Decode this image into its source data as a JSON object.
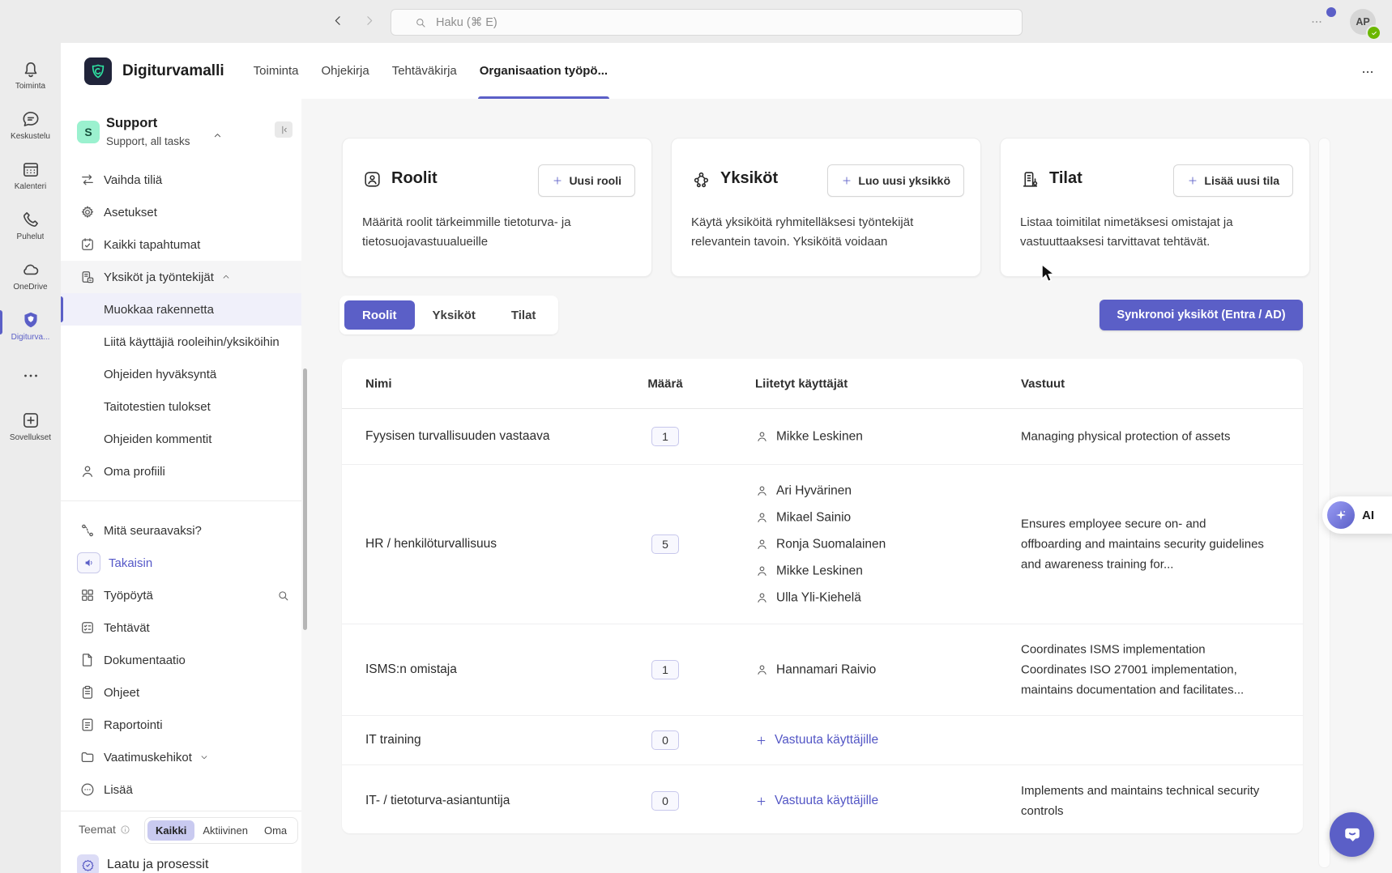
{
  "topbar": {
    "search_placeholder": "Haku (⌘ E)",
    "avatar_initials": "AP"
  },
  "rail": {
    "items": [
      {
        "label": "Toiminta",
        "icon": "bell",
        "active": false
      },
      {
        "label": "Keskustelu",
        "icon": "chat",
        "active": false
      },
      {
        "label": "Kalenteri",
        "icon": "calendar",
        "active": false
      },
      {
        "label": "Puhelut",
        "icon": "phone",
        "active": false
      },
      {
        "label": "OneDrive",
        "icon": "cloud",
        "active": false
      },
      {
        "label": "Digiturva...",
        "icon": "shield",
        "active": true
      },
      {
        "label": "",
        "icon": "dots",
        "active": false
      },
      {
        "label": "Sovellukset",
        "icon": "plus-square",
        "active": false
      }
    ]
  },
  "app_header": {
    "app_name": "Digiturvamalli",
    "tabs": [
      {
        "label": "Toiminta",
        "active": false
      },
      {
        "label": "Ohjekirja",
        "active": false
      },
      {
        "label": "Tehtäväkirja",
        "active": false
      },
      {
        "label": "Organisaation työpö...",
        "active": true
      }
    ]
  },
  "sidebar": {
    "team_initial": "S",
    "team_name": "Support",
    "team_subtitle": "Support, all tasks",
    "items": [
      {
        "label": "Vaihda tiliä",
        "icon": "swap"
      },
      {
        "label": "Asetukset",
        "icon": "gear"
      },
      {
        "label": "Kaikki tapahtumat",
        "icon": "event"
      },
      {
        "label": "Yksiköt ja työntekijät",
        "icon": "org",
        "chevron": "up",
        "grouped": true
      },
      {
        "label": "Muokkaa rakennetta",
        "sub": true,
        "active": true
      },
      {
        "label": "Liitä käyttäjiä rooleihin/yksiköihin",
        "sub": true
      },
      {
        "label": "Ohjeiden hyväksyntä",
        "sub": true
      },
      {
        "label": "Taitotestien tulokset",
        "sub": true
      },
      {
        "label": "Ohjeiden kommentit",
        "sub": true
      },
      {
        "label": "Oma profiili",
        "icon": "person"
      },
      {
        "divider": true
      },
      {
        "label": "Mitä seuraavaksi?",
        "icon": "route"
      },
      {
        "label": "Takaisin",
        "icon": "speaker",
        "accent": true,
        "boxed_icon": true
      },
      {
        "label": "Työpöytä",
        "icon": "grid",
        "trailing_icon": "search"
      },
      {
        "label": "Tehtävät",
        "icon": "tasks"
      },
      {
        "label": "Dokumentaatio",
        "icon": "doc"
      },
      {
        "label": "Ohjeet",
        "icon": "clipboard"
      },
      {
        "label": "Raportointi",
        "icon": "report"
      },
      {
        "label": "Vaatimuskehikot",
        "icon": "folder",
        "chevron": "down"
      },
      {
        "label": "Lisää",
        "icon": "more-circle"
      }
    ],
    "themes_label": "Teemat",
    "theme_filters": [
      {
        "label": "Kaikki",
        "active": true
      },
      {
        "label": "Aktiivinen",
        "active": false
      },
      {
        "label": "Oma",
        "active": false
      }
    ],
    "theme_item": "Laatu ja prosessit"
  },
  "cards": [
    {
      "title": "Roolit",
      "icon": "roles-card",
      "button": "Uusi rooli",
      "desc": "Määritä roolit tärkeimmille tietoturva- ja tietosuojavastuualueille"
    },
    {
      "title": "Yksiköt",
      "icon": "units-card",
      "button": "Luo uusi yksikkö",
      "desc": "Käytä yksiköitä ryhmitelläksesi työntekijät relevantein tavoin. Yksiköitä voidaan"
    },
    {
      "title": "Tilat",
      "icon": "sites-card",
      "button": "Lisää uusi tila",
      "desc": "Listaa toimitilat nimetäksesi omistajat ja vastuuttaaksesi tarvittavat tehtävät."
    }
  ],
  "view_tabs": [
    {
      "label": "Roolit",
      "active": true
    },
    {
      "label": "Yksiköt",
      "active": false
    },
    {
      "label": "Tilat",
      "active": false
    }
  ],
  "sync_button": "Synkronoi yksiköt (Entra / AD)",
  "table": {
    "headers": [
      "Nimi",
      "Määrä",
      "Liitetyt käyttäjät",
      "Vastuut"
    ],
    "assign_label": "Vastuuta käyttäjille",
    "rows": [
      {
        "name": "Fyysisen turvallisuuden vastaava",
        "count": "1",
        "assign": false,
        "users": [
          "Mikke Leskinen"
        ],
        "responsibilities": "Managing physical protection of assets"
      },
      {
        "name": "HR / henkilöturvallisuus",
        "count": "5",
        "assign": false,
        "users": [
          "Ari Hyvärinen",
          "Mikael Sainio",
          "Ronja Suomalainen",
          "Mikke Leskinen",
          "Ulla Yli-Kiehelä"
        ],
        "responsibilities": "Ensures employee secure on- and offboarding and maintains security guidelines and awareness training for..."
      },
      {
        "name": "ISMS:n omistaja",
        "count": "1",
        "assign": false,
        "users": [
          "Hannamari Raivio"
        ],
        "responsibilities": "Coordinates ISMS implementation Coordinates ISO 27001 implementation, maintains documentation and facilitates..."
      },
      {
        "name": "IT training",
        "count": "0",
        "assign": true,
        "users": [],
        "responsibilities": ""
      },
      {
        "name": "IT- / tietoturva-asiantuntija",
        "count": "0",
        "assign": true,
        "users": [],
        "responsibilities": "Implements and maintains technical security controls"
      }
    ]
  },
  "ai_button": {
    "label": "AI"
  },
  "colors": {
    "accent": "#5b5fc7",
    "accent_dark": "#4f52b2",
    "mint": "#9bf1cf",
    "logo_teal": "#2ee0a0",
    "presence_green": "#6bb700"
  }
}
